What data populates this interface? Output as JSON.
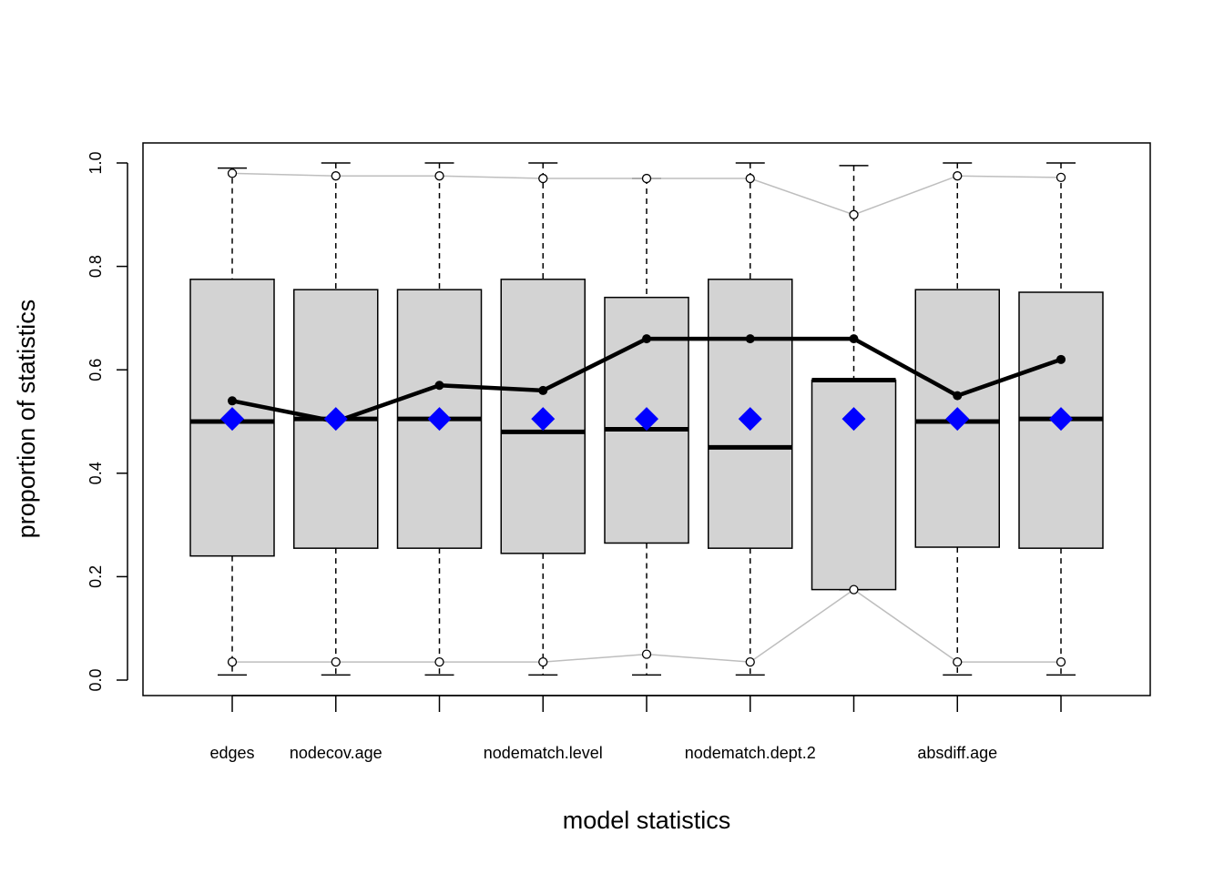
{
  "chart_data": {
    "type": "boxplot",
    "xlabel": "model statistics",
    "ylabel": "proportion of statistics",
    "ylim": [
      0,
      1
    ],
    "yticks": [
      "0.0",
      "0.2",
      "0.4",
      "0.6",
      "0.8",
      "1.0"
    ],
    "categories": [
      "edges",
      "nodecov.age",
      "",
      "nodematch.level",
      "",
      "nodematch.dept.2",
      "",
      "absdiff.age",
      ""
    ],
    "boxes": [
      {
        "whisker_low": 0.01,
        "q1": 0.24,
        "median": 0.5,
        "q3": 0.775,
        "whisker_high": 0.99
      },
      {
        "whisker_low": 0.01,
        "q1": 0.255,
        "median": 0.505,
        "q3": 0.755,
        "whisker_high": 1.0
      },
      {
        "whisker_low": 0.01,
        "q1": 0.255,
        "median": 0.505,
        "q3": 0.755,
        "whisker_high": 1.0
      },
      {
        "whisker_low": 0.01,
        "q1": 0.245,
        "median": 0.48,
        "q3": 0.775,
        "whisker_high": 1.0
      },
      {
        "whisker_low": 0.01,
        "q1": 0.265,
        "median": 0.485,
        "q3": 0.74,
        "whisker_high": 0.97
      },
      {
        "whisker_low": 0.01,
        "q1": 0.255,
        "median": 0.45,
        "q3": 0.775,
        "whisker_high": 1.0
      },
      {
        "whisker_low": 0.175,
        "q1": 0.175,
        "median": 0.58,
        "q3": 0.58,
        "whisker_high": 0.995
      },
      {
        "whisker_low": 0.01,
        "q1": 0.257,
        "median": 0.5,
        "q3": 0.755,
        "whisker_high": 1.0
      },
      {
        "whisker_low": 0.01,
        "q1": 0.255,
        "median": 0.505,
        "q3": 0.75,
        "whisker_high": 1.0
      }
    ],
    "observed": [
      0.54,
      0.5,
      0.57,
      0.56,
      0.66,
      0.66,
      0.66,
      0.55,
      0.62
    ],
    "means": [
      0.505,
      0.505,
      0.505,
      0.505,
      0.505,
      0.505,
      0.505,
      0.505,
      0.505
    ],
    "upper_bound": [
      0.98,
      0.975,
      0.975,
      0.97,
      0.97,
      0.97,
      0.9,
      0.975,
      0.972
    ],
    "lower_bound": [
      0.035,
      0.035,
      0.035,
      0.035,
      0.05,
      0.035,
      0.175,
      0.035,
      0.035
    ],
    "colors": {
      "box_fill": "#d3d3d3",
      "observed_line": "#000000",
      "mean_marker": "#0000ff",
      "bounds_line": "#bebebe"
    }
  }
}
